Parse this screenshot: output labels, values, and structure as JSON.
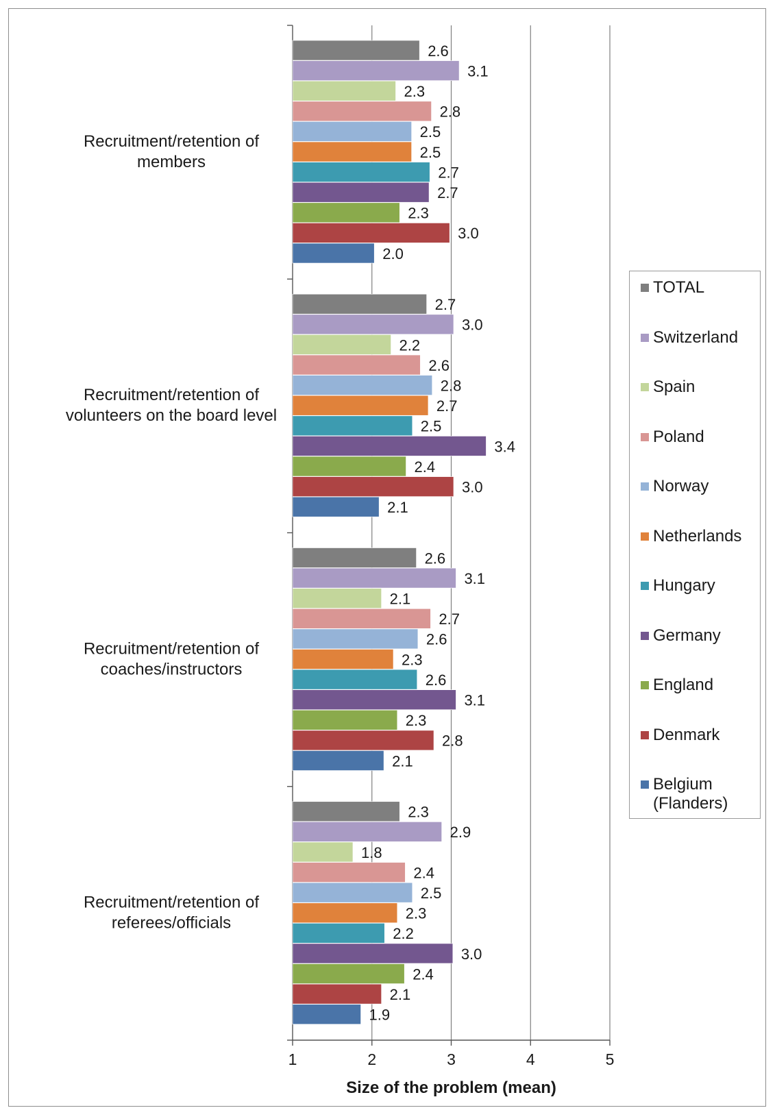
{
  "chart_data": {
    "type": "bar",
    "orientation": "horizontal",
    "categories": [
      "Recruitment/retention of members",
      "Recruitment/retention of volunteers on the board level",
      "Recruitment/retention of coaches/instructors",
      "Recruitment/retention of referees/officials"
    ],
    "category_lines": [
      [
        "Recruitment/retention of",
        "members"
      ],
      [
        "Recruitment/retention of",
        "volunteers on the board level"
      ],
      [
        "Recruitment/retention of",
        "coaches/instructors"
      ],
      [
        "Recruitment/retention of",
        "referees/officials"
      ]
    ],
    "series": [
      {
        "name": "TOTAL",
        "color": "#7f7f7f",
        "values": [
          2.6,
          2.7,
          2.6,
          2.3
        ]
      },
      {
        "name": "Switzerland",
        "color": "#a99bc4",
        "values": [
          3.1,
          3.0,
          3.1,
          2.9
        ]
      },
      {
        "name": "Spain",
        "color": "#c3d69b",
        "values": [
          2.3,
          2.2,
          2.1,
          1.8
        ]
      },
      {
        "name": "Poland",
        "color": "#d99694",
        "values": [
          2.8,
          2.6,
          2.7,
          2.4
        ]
      },
      {
        "name": "Norway",
        "color": "#95b3d7",
        "values": [
          2.5,
          2.8,
          2.6,
          2.5
        ]
      },
      {
        "name": "Netherlands",
        "color": "#e0823b",
        "values": [
          2.5,
          2.7,
          2.3,
          2.3
        ]
      },
      {
        "name": "Hungary",
        "color": "#3d9bb0",
        "values": [
          2.7,
          2.5,
          2.6,
          2.2
        ]
      },
      {
        "name": "Germany",
        "color": "#73578f",
        "values": [
          2.7,
          3.4,
          3.1,
          3.0
        ]
      },
      {
        "name": "England",
        "color": "#8aaa4c",
        "values": [
          2.3,
          2.4,
          2.3,
          2.4
        ]
      },
      {
        "name": "Denmark",
        "color": "#ad4444",
        "values": [
          3.0,
          3.0,
          2.8,
          2.1
        ]
      },
      {
        "name": "Belgium (Flanders)",
        "color": "#4a74a8",
        "values": [
          2.0,
          2.1,
          2.1,
          1.9
        ]
      }
    ],
    "bar_lengths": [
      [
        2.6,
        3.1,
        2.3,
        2.75,
        2.5,
        2.5,
        2.73,
        2.72,
        2.35,
        2.98,
        2.03
      ],
      [
        2.69,
        3.03,
        2.24,
        2.61,
        2.76,
        2.71,
        2.51,
        3.44,
        2.43,
        3.03,
        2.09
      ],
      [
        2.56,
        3.06,
        2.12,
        2.74,
        2.58,
        2.27,
        2.57,
        3.06,
        2.32,
        2.78,
        2.15
      ],
      [
        2.35,
        2.88,
        1.76,
        2.42,
        2.51,
        2.32,
        2.16,
        3.02,
        2.41,
        2.12,
        1.86
      ]
    ],
    "value_labels": [
      [
        "2.6",
        "3.1",
        "2.3",
        "2.8",
        "2.5",
        "2.5",
        "2.7",
        "2.7",
        "2.3",
        "3.0",
        "2.0"
      ],
      [
        "2.7",
        "3.0",
        "2.2",
        "2.6",
        "2.8",
        "2.7",
        "2.5",
        "3.4",
        "2.4",
        "3.0",
        "2.1"
      ],
      [
        "2.6",
        "3.1",
        "2.1",
        "2.7",
        "2.6",
        "2.3",
        "2.6",
        "3.1",
        "2.3",
        "2.8",
        "2.1"
      ],
      [
        "2.3",
        "2.9",
        "1.8",
        "2.4",
        "2.5",
        "2.3",
        "2.2",
        "3.0",
        "2.4",
        "2.1",
        "1.9"
      ]
    ],
    "xlim": [
      1,
      5
    ],
    "x_ticks": [
      "1",
      "2",
      "3",
      "4",
      "5"
    ],
    "xlabel": "Size of the problem (mean)",
    "ylabel": "",
    "grid": "vertical gridlines",
    "legend": {
      "placement": "right",
      "entries": [
        {
          "lines": [
            "TOTAL"
          ],
          "color": "#7f7f7f"
        },
        {
          "lines": [
            "Switzerland"
          ],
          "color": "#a99bc4"
        },
        {
          "lines": [
            "Spain"
          ],
          "color": "#c3d69b"
        },
        {
          "lines": [
            "Poland"
          ],
          "color": "#d99694"
        },
        {
          "lines": [
            "Norway"
          ],
          "color": "#95b3d7"
        },
        {
          "lines": [
            "Netherlands"
          ],
          "color": "#e0823b"
        },
        {
          "lines": [
            "Hungary"
          ],
          "color": "#3d9bb0"
        },
        {
          "lines": [
            "Germany"
          ],
          "color": "#73578f"
        },
        {
          "lines": [
            "England"
          ],
          "color": "#8aaa4c"
        },
        {
          "lines": [
            "Denmark"
          ],
          "color": "#ad4444"
        },
        {
          "lines": [
            "Belgium",
            "(Flanders)"
          ],
          "color": "#4a74a8"
        }
      ]
    }
  }
}
